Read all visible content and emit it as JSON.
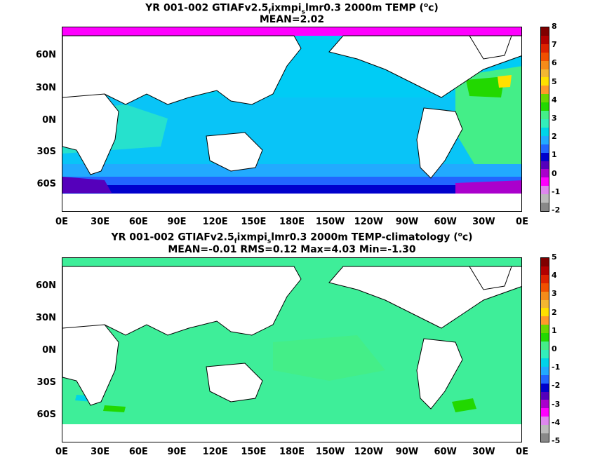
{
  "panels": [
    {
      "title_pre": "YR 001-002 GTIAFv2.5",
      "title_sub1": "f",
      "title_mid1": "ixmpi",
      "title_sub2": "s",
      "title_post": "lmr0.3 2000m TEMP (",
      "title_sup": "o",
      "title_end": "c)",
      "stats": "MEAN=2.02",
      "colorbar": {
        "ticks": [
          "8",
          "7",
          "6",
          "5",
          "4",
          "3",
          "2",
          "1",
          "0",
          "-1",
          "-2"
        ],
        "colors": [
          "#7f0000",
          "#b20000",
          "#dd2200",
          "#f05000",
          "#f58b1a",
          "#f2b732",
          "#ffe000",
          "#ff9a2a",
          "#6ad800",
          "#22d800",
          "#44ee88",
          "#33eebb",
          "#00d4e8",
          "#22aaff",
          "#2266ff",
          "#0000cc",
          "#5500bb",
          "#aa00cc",
          "#ff00ff",
          "#dd88ee",
          "#bbbbbb",
          "#888888"
        ]
      }
    },
    {
      "title_pre": "YR 001-002 GTIAFv2.5",
      "title_sub1": "f",
      "title_mid1": "ixmpi",
      "title_sub2": "s",
      "title_post": "lmr0.3 2000m TEMP-climatology (",
      "title_sup": "o",
      "title_end": "c)",
      "stats": "MEAN=-0.01   RMS=0.12   Max=4.03   Min=-1.30",
      "colorbar": {
        "ticks": [
          "5",
          "4",
          "3",
          "2",
          "1",
          "0",
          "-1",
          "-2",
          "-3",
          "-4",
          "-5"
        ],
        "colors": [
          "#7f0000",
          "#b20000",
          "#dd2200",
          "#f05000",
          "#f58b1a",
          "#f2b732",
          "#ffe000",
          "#ff9a2a",
          "#6ad800",
          "#22d800",
          "#44ee88",
          "#33eebb",
          "#00d4e8",
          "#22aaff",
          "#2266ff",
          "#0000cc",
          "#5500bb",
          "#aa00cc",
          "#ff00ff",
          "#dd88ee",
          "#bbbbbb",
          "#888888"
        ]
      }
    }
  ],
  "lat_labels": [
    "60N",
    "30N",
    "0N",
    "30S",
    "60S"
  ],
  "lon_labels": [
    "0E",
    "30E",
    "60E",
    "90E",
    "120E",
    "150E",
    "180E",
    "150W",
    "120W",
    "90W",
    "60W",
    "30W",
    "0E"
  ]
}
